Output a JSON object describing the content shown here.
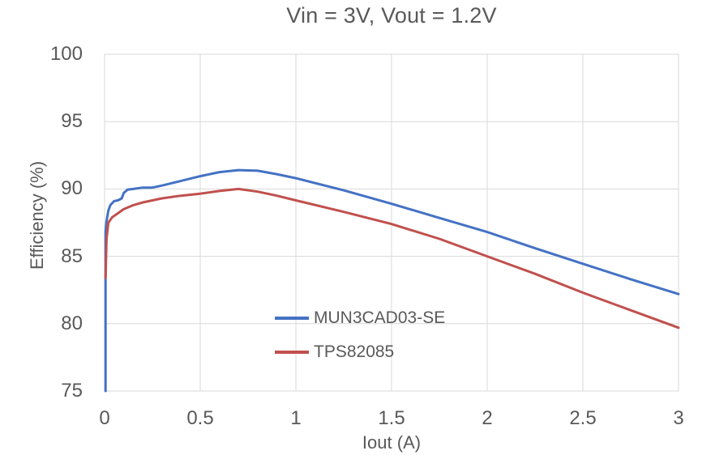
{
  "chart": {
    "title": "Vin = 3V, Vout = 1.2V"
  },
  "chart_data": {
    "type": "line",
    "title": "Vin = 3V, Vout = 1.2V",
    "xlabel": "Iout (A)",
    "ylabel": "Efficiency (%)",
    "xlim": [
      0,
      3
    ],
    "ylim": [
      75,
      100
    ],
    "xticks": [
      0,
      0.5,
      1,
      1.5,
      2,
      2.5,
      3
    ],
    "xtick_labels": [
      "0",
      "0.5",
      "1",
      "1.5",
      "2",
      "2.5",
      "3"
    ],
    "yticks": [
      75,
      80,
      85,
      90,
      95,
      100
    ],
    "ytick_labels": [
      "75",
      "80",
      "85",
      "90",
      "95",
      "100"
    ],
    "grid": true,
    "legend_position": "inside-lower-center",
    "colors": {
      "grid_line": "#D9D9D9",
      "plot_border": "#D9D9D9",
      "text": "#595959",
      "series_blue": "#4472C4",
      "series_red": "#C0504D"
    },
    "series": [
      {
        "name": "MUN3CAD03-SE",
        "color": "#4472C4",
        "points": [
          [
            0.005,
            75.0
          ],
          [
            0.005,
            86.8
          ],
          [
            0.01,
            87.6
          ],
          [
            0.02,
            88.4
          ],
          [
            0.03,
            88.8
          ],
          [
            0.05,
            89.1
          ],
          [
            0.07,
            89.15
          ],
          [
            0.09,
            89.3
          ],
          [
            0.1,
            89.7
          ],
          [
            0.12,
            89.95
          ],
          [
            0.15,
            90.0
          ],
          [
            0.2,
            90.1
          ],
          [
            0.25,
            90.1
          ],
          [
            0.3,
            90.25
          ],
          [
            0.4,
            90.6
          ],
          [
            0.5,
            90.95
          ],
          [
            0.6,
            91.25
          ],
          [
            0.7,
            91.4
          ],
          [
            0.8,
            91.35
          ],
          [
            0.9,
            91.1
          ],
          [
            1.0,
            90.8
          ],
          [
            1.25,
            89.9
          ],
          [
            1.5,
            88.9
          ],
          [
            1.75,
            87.85
          ],
          [
            2.0,
            86.8
          ],
          [
            2.25,
            85.6
          ],
          [
            2.5,
            84.45
          ],
          [
            2.75,
            83.3
          ],
          [
            3.0,
            82.2
          ]
        ]
      },
      {
        "name": "TPS82085",
        "color": "#C0504D",
        "points": [
          [
            0.005,
            83.4
          ],
          [
            0.01,
            86.3
          ],
          [
            0.02,
            87.5
          ],
          [
            0.04,
            87.9
          ],
          [
            0.07,
            88.2
          ],
          [
            0.1,
            88.5
          ],
          [
            0.15,
            88.8
          ],
          [
            0.2,
            89.0
          ],
          [
            0.3,
            89.3
          ],
          [
            0.4,
            89.5
          ],
          [
            0.5,
            89.65
          ],
          [
            0.6,
            89.85
          ],
          [
            0.7,
            90.0
          ],
          [
            0.8,
            89.8
          ],
          [
            0.9,
            89.5
          ],
          [
            1.0,
            89.15
          ],
          [
            1.25,
            88.3
          ],
          [
            1.5,
            87.4
          ],
          [
            1.75,
            86.3
          ],
          [
            2.0,
            85.0
          ],
          [
            2.25,
            83.7
          ],
          [
            2.5,
            82.3
          ],
          [
            2.75,
            81.0
          ],
          [
            3.0,
            79.7
          ]
        ]
      }
    ]
  }
}
